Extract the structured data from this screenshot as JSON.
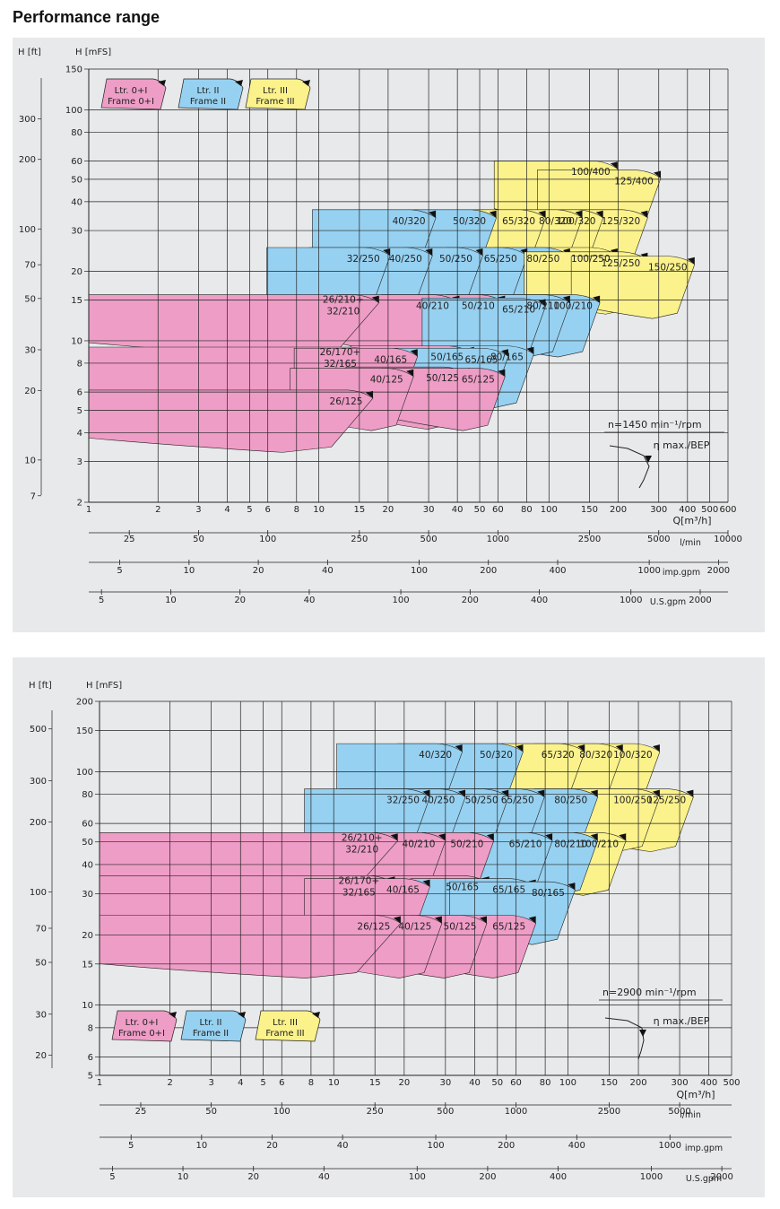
{
  "page": {
    "title": "Performance range"
  },
  "colors": {
    "panel_bg": "#e8e9ea",
    "frame_0_1": "#ee9dc6",
    "frame_2": "#97d1f1",
    "frame_3": "#fbf28c",
    "grid": "#222222"
  },
  "legend": [
    {
      "line1": "Ltr. 0+I",
      "line2": "Frame 0+I",
      "color_key": "frame_0_1"
    },
    {
      "line1": "Ltr. II",
      "line2": "Frame II",
      "color_key": "frame_2"
    },
    {
      "line1": "Ltr. III",
      "line2": "Frame III",
      "color_key": "frame_3"
    }
  ],
  "chart_data": [
    {
      "type": "area",
      "speed_label": "n=1450 min⁻¹/rpm",
      "bep_label": "η max./BEP",
      "ylabel_ft": "H [ft]",
      "ylabel_m": "H [mFS]",
      "xlabel_q": "Q[m³/h]",
      "xlabel_l": "l/min",
      "xlabel_imp": "imp.gpm",
      "xlabel_us": "U.S.gpm",
      "log_x": true,
      "log_y": true,
      "xlim": [
        1,
        600
      ],
      "ylim": [
        2,
        150
      ],
      "q_ticks": [
        "1",
        "2",
        "3",
        "4",
        "5",
        "6",
        "8",
        "10",
        "15",
        "20",
        "30",
        "40",
        "50",
        "60",
        "80",
        "100",
        "150",
        "200",
        "300",
        "400",
        "500",
        "600"
      ],
      "h_ticks": [
        "2",
        "3",
        "4",
        "5",
        "6",
        "8",
        "10",
        "15",
        "20",
        "30",
        "40",
        "50",
        "60",
        "80",
        "100",
        "150"
      ],
      "ft_ticks": [
        "7",
        "10",
        "20",
        "30",
        "50",
        "70",
        "100",
        "200",
        "300"
      ],
      "lmin_ticks": [
        "25",
        "50",
        "100",
        "250",
        "500",
        "1000",
        "2500",
        "5000",
        "10000"
      ],
      "imp_ticks": [
        "5",
        "10",
        "20",
        "40",
        "100",
        "200",
        "400",
        "1000",
        "2000"
      ],
      "us_ticks": [
        "5",
        "10",
        "20",
        "40",
        "100",
        "200",
        "400",
        "1000",
        "2000"
      ],
      "series": [
        {
          "name": "Frame 0+I",
          "frame": "1",
          "pumps": [
            {
              "label": "26/125",
              "q_bep": 16,
              "h_bep": 5.8
            },
            {
              "label": "26/170+ 32/165",
              "q_bep": 16.5,
              "h_bep": 8.9
            },
            {
              "label": "26/210+ 32/210",
              "q_bep": 17,
              "h_bep": 15
            },
            {
              "label": "40/125",
              "q_bep": 24,
              "h_bep": 7.2
            },
            {
              "label": "40/165",
              "q_bep": 25,
              "h_bep": 8.8
            },
            {
              "label": "40/210",
              "q_bep": 38,
              "h_bep": 15
            },
            {
              "label": "50/125",
              "q_bep": 42,
              "h_bep": 7.3
            },
            {
              "label": "50/165",
              "q_bep": 44,
              "h_bep": 9
            },
            {
              "label": "50/210",
              "q_bep": 60,
              "h_bep": 15
            },
            {
              "label": "65/125",
              "q_bep": 60,
              "h_bep": 7.2
            }
          ]
        },
        {
          "name": "Frame II",
          "frame": "2",
          "pumps": [
            {
              "label": "32/250",
              "q_bep": 19,
              "h_bep": 24
            },
            {
              "label": "40/250",
              "q_bep": 29,
              "h_bep": 24
            },
            {
              "label": "40/320",
              "q_bep": 30,
              "h_bep": 35
            },
            {
              "label": "50/250",
              "q_bep": 48,
              "h_bep": 24
            },
            {
              "label": "50/320",
              "q_bep": 55,
              "h_bep": 35
            },
            {
              "label": "65/165",
              "q_bep": 62,
              "h_bep": 8.8
            },
            {
              "label": "65/210",
              "q_bep": 90,
              "h_bep": 14.5
            },
            {
              "label": "65/250",
              "q_bep": 75,
              "h_bep": 24
            },
            {
              "label": "80/165",
              "q_bep": 80,
              "h_bep": 9
            },
            {
              "label": "80/210",
              "q_bep": 115,
              "h_bep": 15
            },
            {
              "label": "80/250",
              "q_bep": 115,
              "h_bep": 24
            },
            {
              "label": "100/210",
              "q_bep": 155,
              "h_bep": 15
            }
          ]
        },
        {
          "name": "Frame III",
          "frame": "3",
          "pumps": [
            {
              "label": "65/320",
              "q_bep": 90,
              "h_bep": 35
            },
            {
              "label": "80/320",
              "q_bep": 130,
              "h_bep": 35
            },
            {
              "label": "100/320",
              "q_bep": 160,
              "h_bep": 35
            },
            {
              "label": "100/250",
              "q_bep": 185,
              "h_bep": 24
            },
            {
              "label": "100/400",
              "q_bep": 185,
              "h_bep": 57
            },
            {
              "label": "125/250",
              "q_bep": 250,
              "h_bep": 23
            },
            {
              "label": "125/320",
              "q_bep": 250,
              "h_bep": 35
            },
            {
              "label": "125/400",
              "q_bep": 285,
              "h_bep": 52
            },
            {
              "label": "150/250",
              "q_bep": 400,
              "h_bep": 22
            }
          ]
        }
      ]
    },
    {
      "type": "area",
      "speed_label": "n=2900 min⁻¹/rpm",
      "bep_label": "η max./BEP",
      "ylabel_ft": "H [ft]",
      "ylabel_m": "H [mFS]",
      "xlabel_q": "Q[m³/h]",
      "xlabel_l": "l/min",
      "xlabel_imp": "imp.gpm",
      "xlabel_us": "U.S.gpm",
      "log_x": true,
      "log_y": true,
      "xlim": [
        1,
        500
      ],
      "ylim": [
        5,
        200
      ],
      "q_ticks": [
        "1",
        "2",
        "3",
        "4",
        "5",
        "6",
        "8",
        "10",
        "15",
        "20",
        "30",
        "40",
        "50",
        "60",
        "80",
        "100",
        "150",
        "200",
        "300",
        "400",
        "500"
      ],
      "h_ticks": [
        "5",
        "6",
        "8",
        "10",
        "15",
        "20",
        "30",
        "40",
        "50",
        "60",
        "80",
        "100",
        "150",
        "200"
      ],
      "ft_ticks": [
        "20",
        "30",
        "50",
        "70",
        "100",
        "200",
        "300",
        "500"
      ],
      "lmin_ticks": [
        "25",
        "50",
        "100",
        "250",
        "500",
        "1000",
        "2500",
        "5000"
      ],
      "imp_ticks": [
        "5",
        "10",
        "20",
        "40",
        "100",
        "200",
        "400",
        "1000"
      ],
      "us_ticks": [
        "5",
        "10",
        "20",
        "40",
        "100",
        "200",
        "400",
        "1000",
        "2000"
      ],
      "series": [
        {
          "name": "Frame 0+I",
          "frame": "1",
          "pumps": [
            {
              "label": "26/125",
              "q_bep": 18,
              "h_bep": 23
            },
            {
              "label": "26/170+ 32/165",
              "q_bep": 17,
              "h_bep": 34
            },
            {
              "label": "26/210+ 32/210",
              "q_bep": 17.5,
              "h_bep": 52
            },
            {
              "label": "40/125",
              "q_bep": 27,
              "h_bep": 23
            },
            {
              "label": "40/165",
              "q_bep": 24,
              "h_bep": 33
            },
            {
              "label": "40/210",
              "q_bep": 28,
              "h_bep": 52
            },
            {
              "label": "50/125",
              "q_bep": 42,
              "h_bep": 23
            },
            {
              "label": "50/165",
              "q_bep": 43,
              "h_bep": 34
            },
            {
              "label": "50/210",
              "q_bep": 45,
              "h_bep": 52
            },
            {
              "label": "65/125",
              "q_bep": 68,
              "h_bep": 23
            }
          ]
        },
        {
          "name": "Frame II",
          "frame": "2",
          "pumps": [
            {
              "label": "32/250",
              "q_bep": 24,
              "h_bep": 80
            },
            {
              "label": "40/250",
              "q_bep": 34,
              "h_bep": 80
            },
            {
              "label": "40/320",
              "q_bep": 33,
              "h_bep": 125
            },
            {
              "label": "50/250",
              "q_bep": 52,
              "h_bep": 80
            },
            {
              "label": "50/320",
              "q_bep": 60,
              "h_bep": 125
            },
            {
              "label": "65/165",
              "q_bep": 68,
              "h_bep": 33
            },
            {
              "label": "65/210",
              "q_bep": 80,
              "h_bep": 52
            },
            {
              "label": "65/250",
              "q_bep": 74,
              "h_bep": 80
            },
            {
              "label": "80/165",
              "q_bep": 100,
              "h_bep": 32
            },
            {
              "label": "80/210",
              "q_bep": 125,
              "h_bep": 52
            },
            {
              "label": "80/250",
              "q_bep": 125,
              "h_bep": 80
            }
          ]
        },
        {
          "name": "Frame III",
          "frame": "3",
          "pumps": [
            {
              "label": "65/320",
              "q_bep": 110,
              "h_bep": 125
            },
            {
              "label": "80/320",
              "q_bep": 160,
              "h_bep": 125
            },
            {
              "label": "100/210",
              "q_bep": 165,
              "h_bep": 52
            },
            {
              "label": "100/250",
              "q_bep": 230,
              "h_bep": 80
            },
            {
              "label": "100/320",
              "q_bep": 230,
              "h_bep": 125
            },
            {
              "label": "125/250",
              "q_bep": 320,
              "h_bep": 80
            }
          ]
        }
      ]
    }
  ]
}
